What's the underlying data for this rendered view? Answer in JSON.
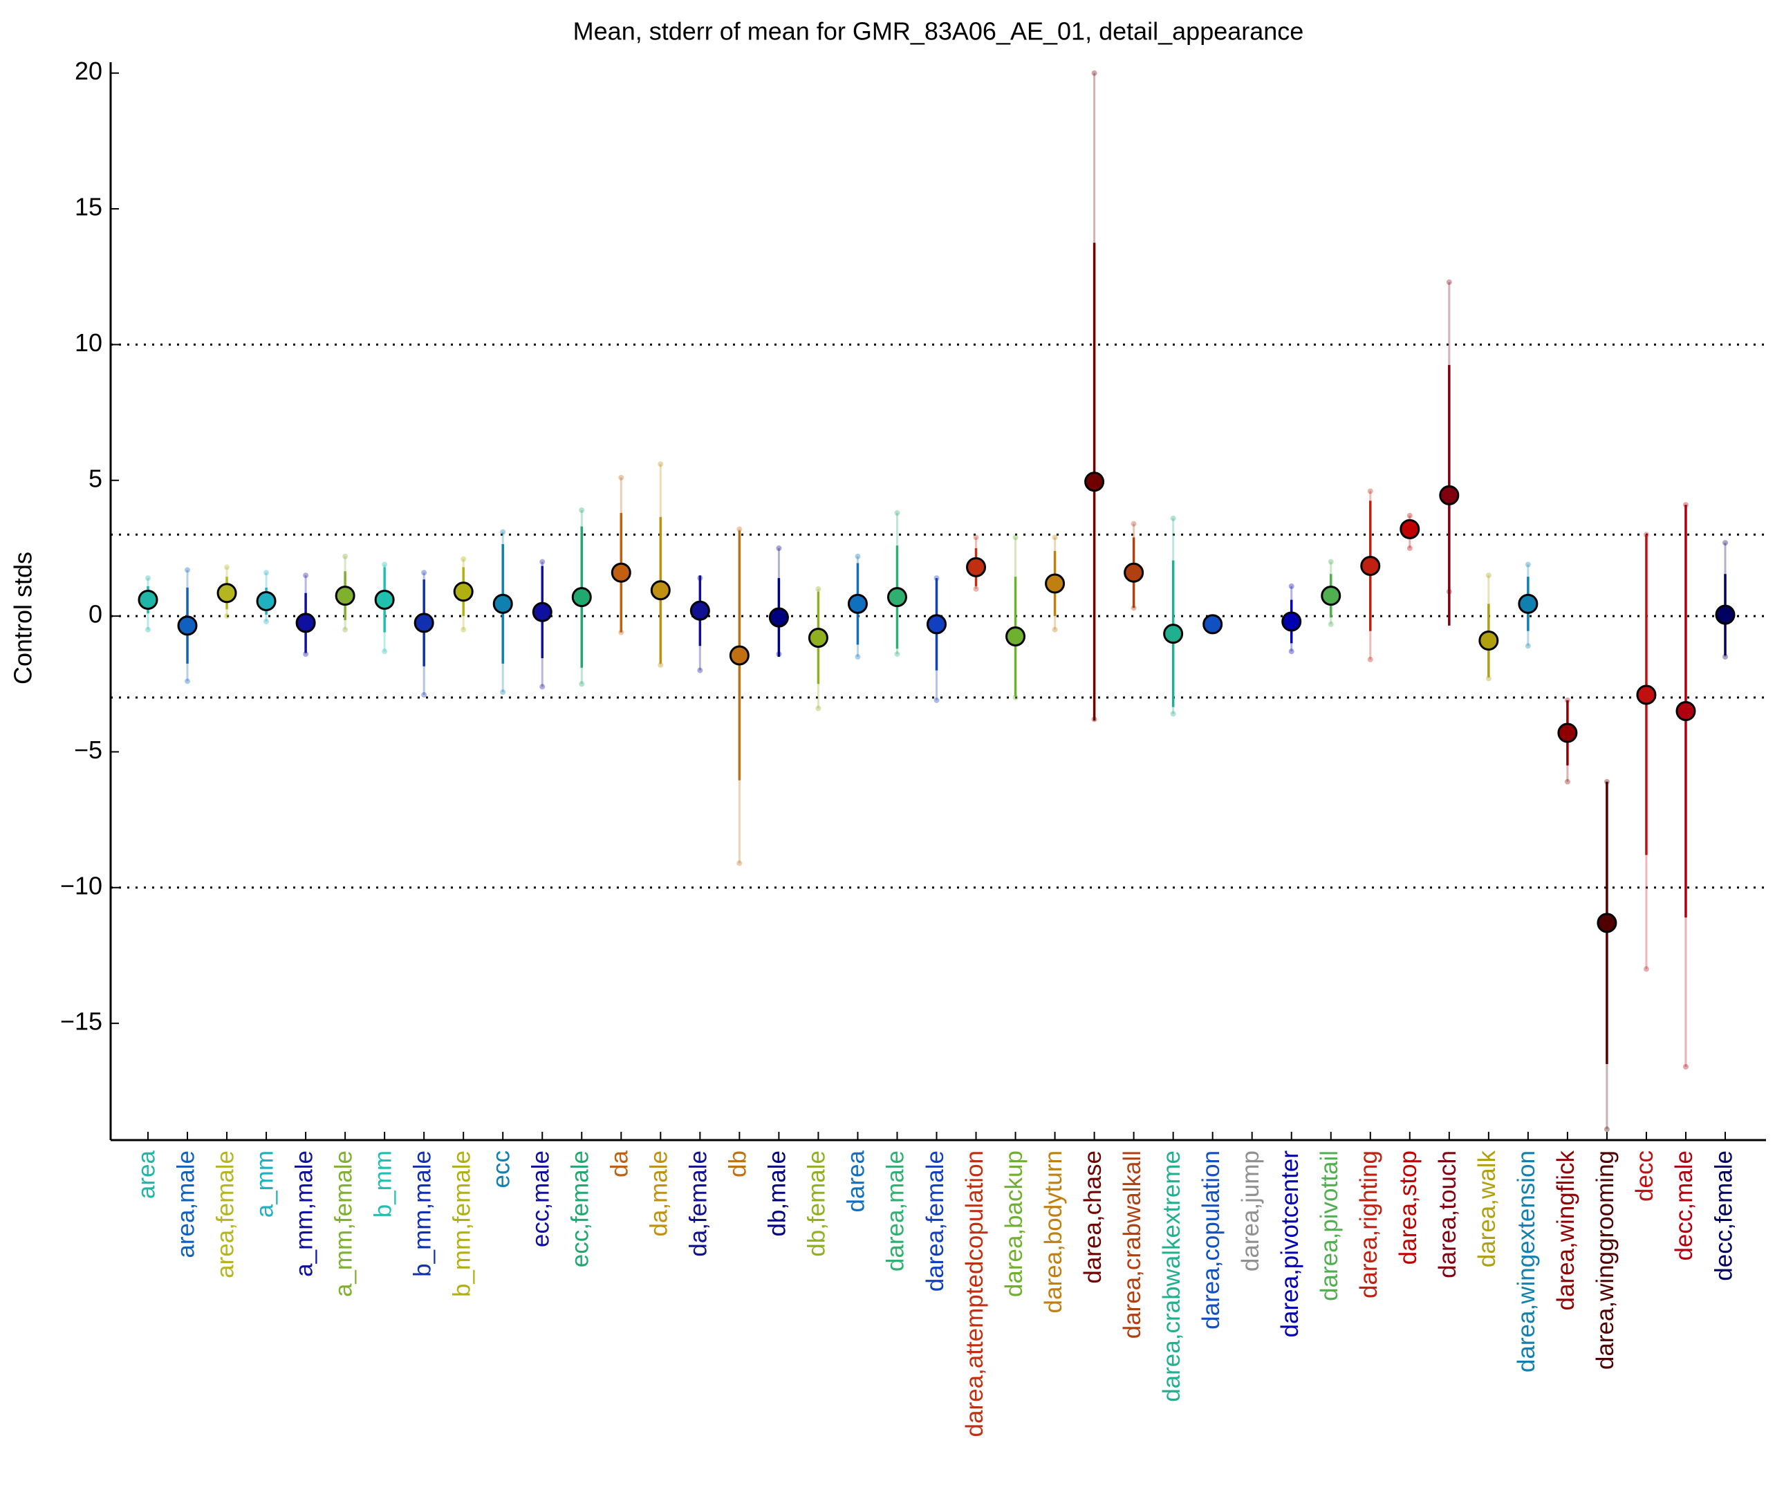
{
  "chart_data": {
    "type": "errorbar",
    "title": "Mean, stderr of mean for GMR_83A06_AE_01, detail_appearance",
    "y_label": "Control stds",
    "categories": [
      "area",
      "area,male",
      "area,female",
      "a_mm",
      "a_mm,male",
      "a_mm,female",
      "b_mm",
      "b_mm,male",
      "b_mm,female",
      "ecc",
      "ecc,male",
      "ecc,female",
      "da",
      "da,male",
      "da,female",
      "db",
      "db,male",
      "db,female",
      "darea",
      "darea,male",
      "darea,female",
      "darea,attemptedcopulation",
      "darea,backup",
      "darea,bodyturn",
      "darea,chase",
      "darea,crabwalkall",
      "darea,crabwalkextreme",
      "darea,copulation",
      "darea,jump",
      "darea,pivotcenter",
      "darea,pivottail",
      "darea,righting",
      "darea,stop",
      "darea,touch",
      "darea,walk",
      "darea,wingextension",
      "darea,wingflick",
      "darea,winggrooming",
      "decc",
      "decc,male",
      "decc,female"
    ],
    "values": [
      0.6,
      -0.35,
      0.85,
      0.55,
      -0.25,
      0.75,
      0.6,
      -0.25,
      0.9,
      0.45,
      0.15,
      0.7,
      1.6,
      0.95,
      0.2,
      -1.45,
      -0.05,
      -0.8,
      0.45,
      0.7,
      -0.3,
      1.8,
      -0.75,
      1.2,
      4.95,
      1.6,
      -0.65,
      -0.3,
      null,
      -0.2,
      0.75,
      1.85,
      3.2,
      4.45,
      -0.9,
      0.45,
      -4.3,
      -11.3,
      -2.9,
      -3.5,
      0.05
    ],
    "errors": [
      0.5,
      1.4,
      0.6,
      0.5,
      1.1,
      0.9,
      1.2,
      1.6,
      0.9,
      2.2,
      1.7,
      2.6,
      2.2,
      2.7,
      1.3,
      4.6,
      1.45,
      1.7,
      1.5,
      1.9,
      1.7,
      0.7,
      2.2,
      1.2,
      8.8,
      1.3,
      2.7,
      0.2,
      null,
      0.8,
      0.8,
      2.4,
      0.3,
      4.8,
      1.35,
      1.0,
      1.2,
      5.2,
      5.9,
      7.6,
      1.5
    ],
    "ranges": [
      [
        -0.5,
        1.4
      ],
      [
        -2.4,
        1.7
      ],
      [
        0,
        1.8
      ],
      [
        -0.2,
        1.6
      ],
      [
        -1.4,
        1.5
      ],
      [
        -0.5,
        2.2
      ],
      [
        -1.3,
        1.9
      ],
      [
        -2.9,
        1.6
      ],
      [
        -0.5,
        2.1
      ],
      [
        -2.8,
        3.1
      ],
      [
        -2.6,
        2.0
      ],
      [
        -2.5,
        3.9
      ],
      [
        -0.6,
        5.1
      ],
      [
        -1.8,
        5.6
      ],
      [
        -2.0,
        1.4
      ],
      [
        -9.1,
        3.2
      ],
      [
        -1.4,
        2.5
      ],
      [
        -3.4,
        1.0
      ],
      [
        -1.5,
        2.2
      ],
      [
        -1.4,
        3.8
      ],
      [
        -3.1,
        1.4
      ],
      [
        1.0,
        2.9
      ],
      [
        -3.0,
        2.9
      ],
      [
        -0.5,
        2.9
      ],
      [
        -3.8,
        20
      ],
      [
        0.3,
        3.4
      ],
      [
        -3.6,
        3.6
      ],
      [
        -0.5,
        -0.1
      ],
      null,
      [
        -1.3,
        1.1
      ],
      [
        -0.3,
        2.0
      ],
      [
        -1.6,
        4.6
      ],
      [
        2.5,
        3.7
      ],
      [
        0.9,
        12.3
      ],
      [
        -2.3,
        1.5
      ],
      [
        -1.1,
        1.9
      ],
      [
        -6.1,
        -3.1
      ],
      [
        -18.9,
        -6.1
      ],
      [
        -13.0,
        3.0
      ],
      [
        -16.6,
        4.1
      ],
      [
        -1.5,
        2.7
      ]
    ],
    "colors": [
      "#1fb5a8",
      "#1060c0",
      "#b5b520",
      "#20b0c0",
      "#1010a0",
      "#80b030",
      "#20c0b0",
      "#1030b0",
      "#b0b010",
      "#1080b0",
      "#1010a0",
      "#20a870",
      "#c06010",
      "#c09010",
      "#101090",
      "#c07010",
      "#000080",
      "#90b020",
      "#1070c0",
      "#30b070",
      "#1040c0",
      "#c03010",
      "#70b030",
      "#c08010",
      "#700000",
      "#b04010",
      "#20b090",
      "#1050c0",
      "#909090",
      "#0000b0",
      "#50b050",
      "#c02010",
      "#c00000",
      "#800010",
      "#b0a010",
      "#1080b0",
      "#900000",
      "#500000",
      "#c01010",
      "#b00010",
      "#000060"
    ],
    "ylim": [
      -19.3,
      20.4
    ],
    "yticks": [
      {
        "value": -15,
        "label": "−15"
      },
      {
        "value": -10,
        "label": "−10"
      },
      {
        "value": -5,
        "label": "−5"
      },
      0,
      5,
      10,
      15,
      20
    ],
    "reference_lines": [
      10,
      3,
      0,
      -3,
      -10
    ]
  }
}
